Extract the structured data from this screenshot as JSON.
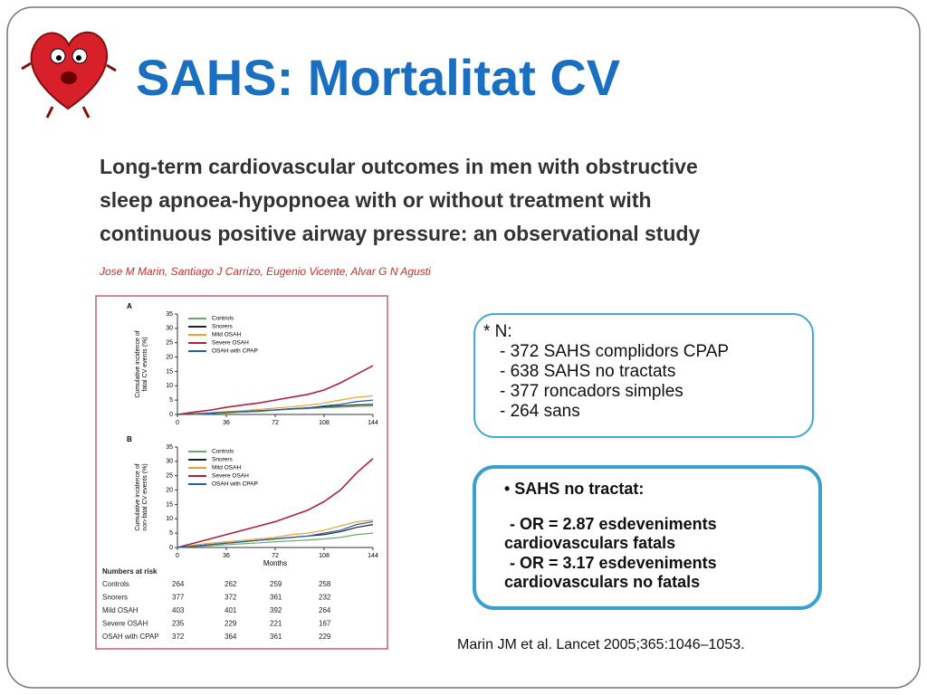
{
  "slide": {
    "title": "SAHS: Mortalitat CV",
    "paper_title": [
      "Long-term cardiovascular outcomes in men with obstructive",
      "sleep apnoea-hypopnoea with or without treatment with",
      "continuous positive airway pressure: an observational study"
    ],
    "authors": "Jose M Marin, Santiago J Carrizo, Eugenio Vicente, Alvar G N Agusti",
    "summary_box": [
      "* N:",
      "- 372  SAHS complidors CPAP",
      "- 638 SAHS no tractats",
      "- 377 roncadors simples",
      "- 264 sans"
    ],
    "result_box": [
      "• SAHS no tractat:",
      "- OR = 2.87 esdeveniments",
      "cardiovasculars fatals",
      "- OR = 3.17 esdeveniments",
      "cardiovasculars no fatals"
    ],
    "citation": "Marin JM et al. Lancet 2005;365:1046–1053."
  },
  "chart_data": [
    {
      "type": "line",
      "panel": "A",
      "y_label": [
        "Cumulative incidence of",
        "fatal CV events (%)"
      ],
      "x": [
        0,
        12,
        24,
        36,
        48,
        60,
        72,
        84,
        96,
        108,
        120,
        132,
        144
      ],
      "xlim": [
        0,
        144
      ],
      "xticks": [
        0,
        36,
        72,
        108,
        144
      ],
      "ylim": [
        0,
        35
      ],
      "yticks": [
        0,
        5,
        10,
        15,
        20,
        25,
        30,
        35
      ],
      "series": [
        {
          "name": "Controls",
          "color": "#6aa870",
          "values": [
            0,
            0,
            0.3,
            0.5,
            0.8,
            1,
            1.5,
            1.8,
            2,
            2.3,
            2.5,
            2.8,
            3
          ]
        },
        {
          "name": "Snorers",
          "color": "#222222",
          "values": [
            0,
            0.2,
            0.5,
            0.8,
            1,
            1.3,
            1.6,
            2,
            2.3,
            2.7,
            3,
            3.3,
            3.5
          ]
        },
        {
          "name": "Mild OSAH",
          "color": "#f0a030",
          "values": [
            0,
            0.3,
            0.6,
            1,
            1.3,
            1.8,
            2.2,
            2.7,
            3.2,
            4,
            5,
            6,
            6.5
          ]
        },
        {
          "name": "Severe OSAH",
          "color": "#b02040",
          "values": [
            0,
            0.8,
            1.5,
            2.5,
            3.3,
            4,
            5,
            6,
            7,
            8.5,
            11,
            14,
            17
          ]
        },
        {
          "name": "OSAH with CPAP",
          "color": "#2060b0",
          "values": [
            0,
            0.2,
            0.5,
            0.8,
            1,
            1.3,
            1.6,
            2,
            2.3,
            3,
            3.5,
            4.5,
            5
          ]
        }
      ]
    },
    {
      "type": "line",
      "panel": "B",
      "y_label": [
        "Cumulative incidence of",
        "non-fatal CV events (%)"
      ],
      "x_label": "Months",
      "x": [
        0,
        12,
        24,
        36,
        48,
        60,
        72,
        84,
        96,
        108,
        120,
        132,
        144
      ],
      "xlim": [
        0,
        144
      ],
      "xticks": [
        0,
        36,
        72,
        108,
        144
      ],
      "ylim": [
        0,
        35
      ],
      "yticks": [
        0,
        5,
        10,
        15,
        20,
        25,
        30,
        35
      ],
      "series": [
        {
          "name": "Controls",
          "color": "#6aa870",
          "values": [
            0,
            0.3,
            0.6,
            1,
            1.3,
            1.6,
            2,
            2.3,
            2.6,
            3,
            3.5,
            4.5,
            5
          ]
        },
        {
          "name": "Snorers",
          "color": "#222222",
          "values": [
            0,
            0.5,
            1,
            1.5,
            2,
            2.5,
            3,
            3.5,
            4,
            4.5,
            5.5,
            7,
            8
          ]
        },
        {
          "name": "Mild OSAH",
          "color": "#f0a030",
          "values": [
            0,
            0.8,
            1.5,
            2,
            2.5,
            3,
            3.5,
            4.5,
            5,
            6,
            7.5,
            9,
            9.5
          ]
        },
        {
          "name": "Severe OSAH",
          "color": "#b02040",
          "values": [
            0,
            1.5,
            3,
            4.5,
            6,
            7.5,
            9,
            11,
            13,
            16,
            20,
            26,
            31
          ]
        },
        {
          "name": "OSAH with CPAP",
          "color": "#2060b0",
          "values": [
            0,
            0.5,
            1,
            1.5,
            2,
            2.5,
            3,
            3.5,
            4,
            5,
            6,
            8,
            9
          ]
        }
      ]
    }
  ],
  "risk_table": {
    "title": "Numbers at risk",
    "rows": [
      [
        "Controls",
        264,
        262,
        259,
        258
      ],
      [
        "Snorers",
        377,
        372,
        361,
        232
      ],
      [
        "Mild OSAH",
        403,
        401,
        392,
        264
      ],
      [
        "Severe OSAH",
        235,
        229,
        221,
        167
      ],
      [
        "OSAH with CPAP",
        372,
        364,
        361,
        229
      ]
    ]
  }
}
